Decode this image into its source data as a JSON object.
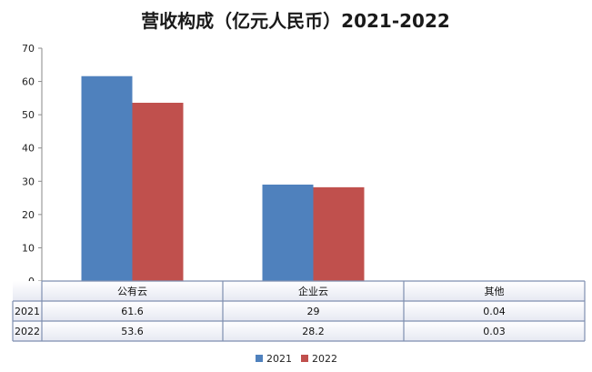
{
  "chart_data": {
    "type": "bar",
    "title": "营收构成（亿元人民币）2021-2022",
    "categories": [
      "公有云",
      "企业云",
      "其他"
    ],
    "series": [
      {
        "name": "2021",
        "values": [
          61.6,
          29,
          0.04
        ],
        "labels": [
          "61.6",
          "29",
          "0.04"
        ],
        "color": "#4F81BD"
      },
      {
        "name": "2022",
        "values": [
          53.6,
          28.2,
          0.03
        ],
        "labels": [
          "53.6",
          "28.2",
          "0.03"
        ],
        "color": "#C0504D"
      }
    ],
    "ylim": [
      0,
      70
    ],
    "yticks": [
      "0",
      "10",
      "20",
      "30",
      "40",
      "50",
      "60",
      "70"
    ],
    "grid": false,
    "legend": "bottom",
    "data_table": true
  }
}
